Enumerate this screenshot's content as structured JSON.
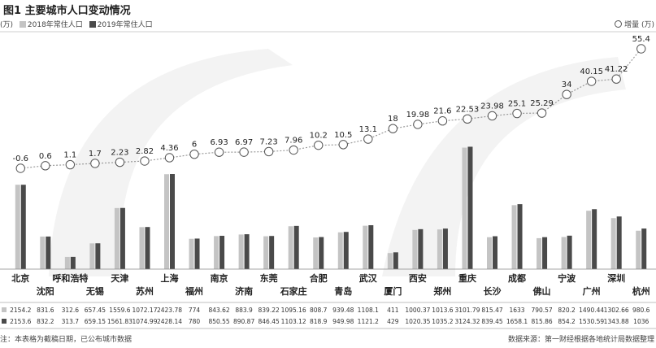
{
  "title": "图1  主要城市人口变动情况",
  "legend": {
    "unit_left": "(万)",
    "series_2018": "2018年常住人口",
    "series_2019": "2019年常住人口",
    "increase": "增量 (万)"
  },
  "colors": {
    "bar_2018": "#c4c4c4",
    "bar_2019": "#4a4a4a",
    "line": "#9a9a9a",
    "marker_stroke": "#555555",
    "watermark": "#f3f3f3"
  },
  "chart_data": {
    "type": "bar",
    "categories": [
      "北京",
      "沈阳",
      "呼和浩特",
      "无锡",
      "天津",
      "苏州",
      "上海",
      "福州",
      "南京",
      "济南",
      "东莞",
      "石家庄",
      "合肥",
      "青岛",
      "武汉",
      "厦门",
      "西安",
      "郑州",
      "重庆",
      "长沙",
      "成都",
      "佛山",
      "宁波",
      "广州",
      "深圳",
      "杭州"
    ],
    "series": [
      {
        "name": "2018年常住人口",
        "values": [
          2154.2,
          831.6,
          312.6,
          657.45,
          1559.6,
          1072.17,
          2423.78,
          774,
          843.62,
          883.9,
          839.22,
          1095.16,
          808.7,
          939.48,
          1108.1,
          411,
          1000.37,
          1013.6,
          3101.79,
          815.47,
          1633,
          790.57,
          820.2,
          1490.44,
          1302.66,
          980.6
        ]
      },
      {
        "name": "2019年常住人口",
        "values": [
          2153.6,
          832.2,
          313.7,
          659.15,
          1561.83,
          1074.99,
          2428.14,
          780,
          850.55,
          890.87,
          846.45,
          1103.12,
          818.9,
          949.98,
          1121.2,
          429,
          1020.35,
          1035.2,
          3124.32,
          839.45,
          1658.1,
          815.86,
          854.2,
          1530.59,
          1343.88,
          1036
        ]
      },
      {
        "name": "增量 (万)",
        "type": "line",
        "values": [
          -0.6,
          0.6,
          1.1,
          1.7,
          2.23,
          2.82,
          4.36,
          6,
          6.93,
          6.97,
          7.23,
          7.96,
          10.2,
          10.5,
          13.1,
          18,
          19.98,
          21.6,
          22.53,
          23.98,
          25.1,
          25.29,
          34,
          40.15,
          41.22,
          55.4
        ]
      }
    ],
    "table_rows": [
      [
        "2154.2",
        "831.6",
        "312.6",
        "657.45",
        "1559.6",
        "1072.17",
        "2423.78",
        "774",
        "843.62",
        "883.9",
        "839.22",
        "1095.16",
        "808.7",
        "939.48",
        "1108.1",
        "411",
        "1000.37",
        "1013.6",
        "3101.79",
        "815.47",
        "1633",
        "790.57",
        "820.2",
        "1490.44",
        "1302.66",
        "980.6"
      ],
      [
        "2153.6",
        "832.2",
        "313.7",
        "659.15",
        "1561.83",
        "1074.99",
        "2428.14",
        "780",
        "850.55",
        "890.87",
        "846.45",
        "1103.12",
        "818.9",
        "949.98",
        "1121.2",
        "429",
        "1020.35",
        "1035.2",
        "3124.32",
        "839.45",
        "1658.1",
        "815.86",
        "854.2",
        "1530.59",
        "1343.88",
        "1036"
      ]
    ],
    "increase_labels": [
      "-0.6",
      "0.6",
      "1.1",
      "1.7",
      "2.23",
      "2.82",
      "4.36",
      "6",
      "6.93",
      "6.97",
      "7.23",
      "7.96",
      "10.2",
      "10.5",
      "13.1",
      "18",
      "19.98",
      "21.6",
      "22.53",
      "23.98",
      "25.1",
      "25.29",
      "34",
      "40.15",
      "41.22",
      "55.4"
    ],
    "bar_ylim": [
      0,
      3300
    ],
    "line_ylim": [
      -0.6,
      55.4
    ],
    "grid": false
  },
  "footnote": "注：本表格为截稿日期，已公布城市数据",
  "source": "数据来源：第一财经根据各地统计局数据整理"
}
